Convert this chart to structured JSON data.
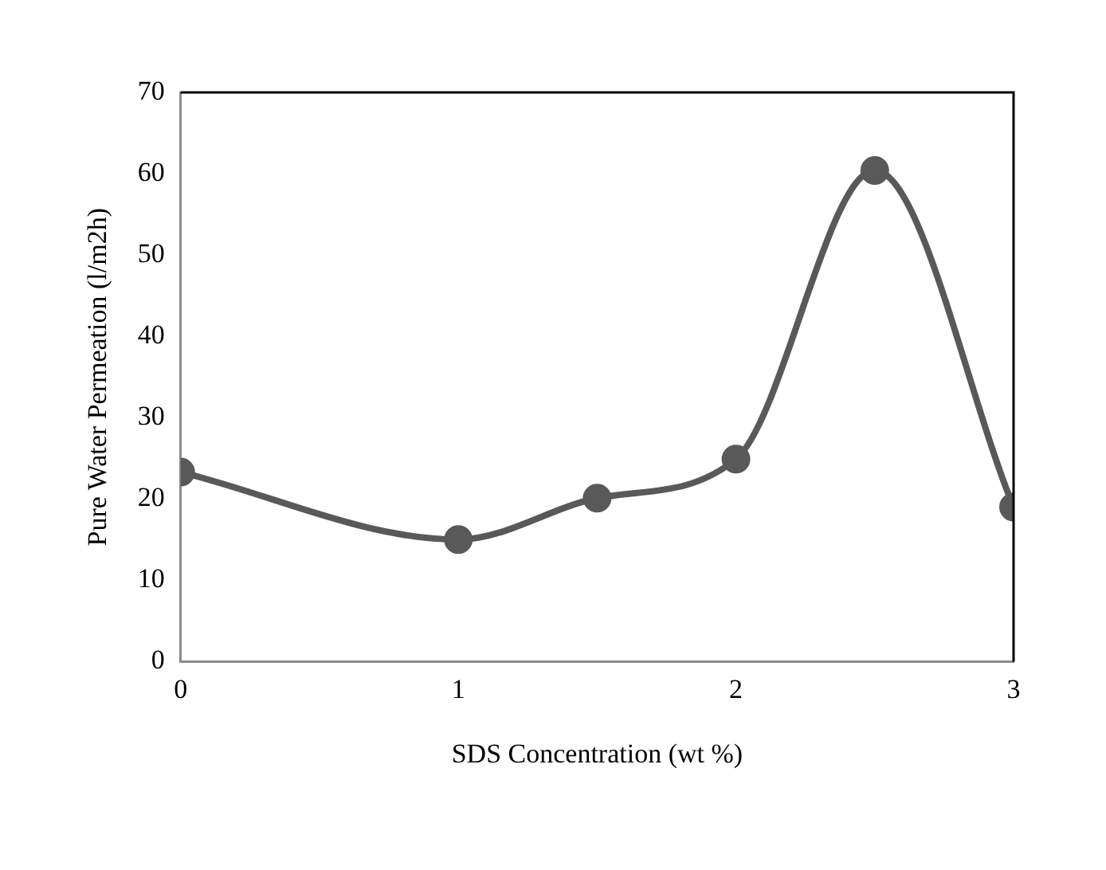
{
  "chart_data": {
    "type": "line",
    "xlabel": "SDS Concentration (wt %)",
    "ylabel": "Pure Water Permeation (l/m2h)",
    "x": [
      0,
      1,
      1.5,
      2,
      2.5,
      3
    ],
    "series": [
      {
        "color": "#595959",
        "values": [
          23.3,
          15.0,
          20.1,
          24.9,
          60.4,
          19.0
        ]
      }
    ],
    "xlim": [
      0,
      3
    ],
    "xticks": [
      0,
      1,
      2,
      3
    ],
    "ylim": [
      0,
      70
    ],
    "yticks": [
      0,
      10,
      20,
      30,
      40,
      50,
      60,
      70
    ],
    "grid": false,
    "legend": false,
    "marker": "circle",
    "line_style": "solid"
  }
}
